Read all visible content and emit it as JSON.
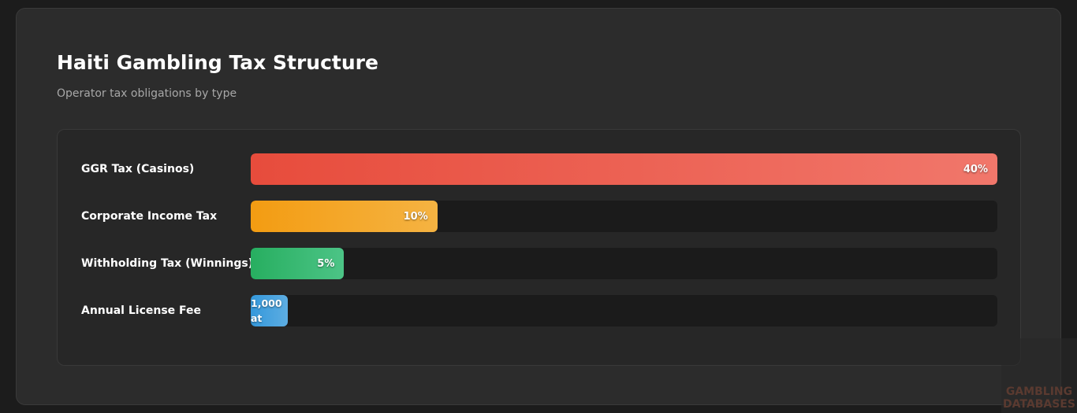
{
  "chart_data": {
    "type": "bar",
    "orientation": "horizontal",
    "title": "Haiti Gambling Tax Structure",
    "subtitle": "Operator tax obligations by type",
    "categories": [
      "GGR Tax (Casinos)",
      "Corporate Income Tax",
      "Withholding Tax (Winnings)",
      "Annual License Fee"
    ],
    "values": [
      40,
      10,
      5,
      null
    ],
    "value_labels": [
      "40%",
      "10%",
      "5%",
      "1,000 at"
    ],
    "colors": [
      [
        "#e74c3c",
        "#f1776b"
      ],
      [
        "#f39c12",
        "#f5b342"
      ],
      [
        "#27ae60",
        "#4cc486"
      ],
      [
        "#3498db",
        "#5dade2"
      ]
    ],
    "xlim": [
      0,
      40
    ]
  },
  "watermark": "GAMBLING DATABASES"
}
